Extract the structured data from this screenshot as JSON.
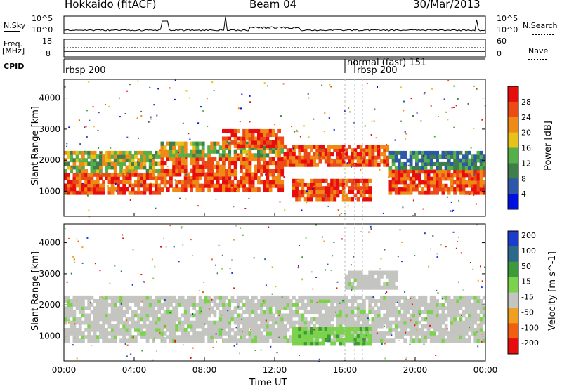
{
  "header": {
    "title": "Hokkaido (fitACF)",
    "beam": "Beam 04",
    "date": "30/Mar/2013"
  },
  "top_panels": {
    "nsky_label": "N.Sky",
    "nsky_ticks": [
      "10^5",
      "10^0"
    ],
    "nsearch_label": "N.Search",
    "nsearch_ticks": [
      "10^5",
      "10^0"
    ],
    "freq_label": "Freq.",
    "freq_unit": "[MHz]",
    "freq_ticks": [
      "18",
      "8"
    ],
    "nave_label": "Nave",
    "nave_ticks": [
      "60",
      "0"
    ],
    "cpid_label": "CPID",
    "cpid_entries": [
      "rbsp 200",
      "normal (fast) 151",
      "rbsp 200"
    ]
  },
  "chart_data": [
    {
      "type": "heatmap",
      "name": "power",
      "title": "",
      "xlabel": "",
      "ylabel": "Slant Range [km]",
      "x_ticks": [
        "00:00",
        "04:00",
        "08:00",
        "12:00",
        "16:00",
        "20:00",
        "00:00"
      ],
      "y_ticks": [
        "1000",
        "2000",
        "3000",
        "4000"
      ],
      "ylim": [
        200,
        4600
      ],
      "colorbar": {
        "label": "Power [dB]",
        "ticks": [
          "4",
          "8",
          "12",
          "16",
          "20",
          "24",
          "28"
        ],
        "colors": [
          "#0010e0",
          "#2d57a8",
          "#3f7e4a",
          "#55b04a",
          "#e6c21a",
          "#f08a16",
          "#ec4a16",
          "#e80d0d"
        ]
      },
      "bands": [
        {
          "t0": 0.0,
          "t1": 5.5,
          "r0": 900,
          "r1": 1600,
          "level": "high"
        },
        {
          "t0": 0.0,
          "t1": 5.5,
          "r0": 1600,
          "r1": 2300,
          "level": "mid"
        },
        {
          "t0": 5.5,
          "t1": 12.5,
          "r0": 1000,
          "r1": 2100,
          "level": "high"
        },
        {
          "t0": 5.5,
          "t1": 12.5,
          "r0": 2100,
          "r1": 2600,
          "level": "mid"
        },
        {
          "t0": 9.0,
          "t1": 12.5,
          "r0": 2400,
          "r1": 3000,
          "level": "high"
        },
        {
          "t0": 12.5,
          "t1": 18.5,
          "r0": 1800,
          "r1": 2500,
          "level": "high"
        },
        {
          "t0": 13.0,
          "t1": 17.5,
          "r0": 700,
          "r1": 1400,
          "level": "high"
        },
        {
          "t0": 18.5,
          "t1": 24.0,
          "r0": 900,
          "r1": 1700,
          "level": "high"
        },
        {
          "t0": 18.5,
          "t1": 24.0,
          "r0": 1700,
          "r1": 2300,
          "level": "low"
        }
      ]
    },
    {
      "type": "heatmap",
      "name": "velocity",
      "title": "",
      "xlabel": "Time UT",
      "ylabel": "Slant Range [km]",
      "x_ticks": [
        "00:00",
        "04:00",
        "08:00",
        "12:00",
        "16:00",
        "20:00",
        "00:00"
      ],
      "y_ticks": [
        "1000",
        "2000",
        "3000",
        "4000"
      ],
      "ylim": [
        200,
        4600
      ],
      "colorbar": {
        "label": "Velocity [m s^-1]",
        "ticks": [
          "200",
          "100",
          "50",
          "15",
          "-15",
          "-50",
          "-100",
          "-200"
        ],
        "colors": [
          "#1c3ccc",
          "#2d6a8a",
          "#3c9a3a",
          "#7ad34a",
          "#c4c4c0",
          "#f0a020",
          "#f06010",
          "#e80d0d"
        ]
      },
      "bands": [
        {
          "t0": 0.0,
          "t1": 24.0,
          "r0": 800,
          "r1": 2300,
          "level": "gray"
        },
        {
          "t0": 16.0,
          "t1": 19.0,
          "r0": 2500,
          "r1": 3100,
          "level": "gray"
        },
        {
          "t0": 13.0,
          "t1": 17.5,
          "r0": 700,
          "r1": 1300,
          "level": "green"
        }
      ]
    }
  ]
}
